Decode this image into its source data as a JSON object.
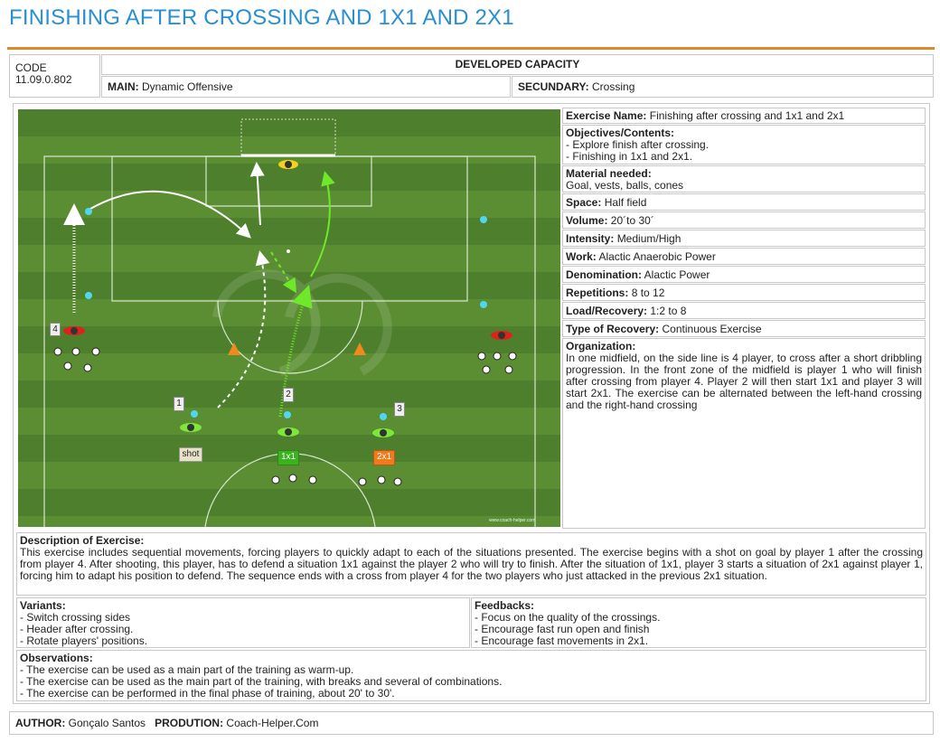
{
  "title": "FINISHING AFTER CROSSING AND 1X1 AND 2X1",
  "code": {
    "label": "CODE",
    "value": "11.09.0.802"
  },
  "developed_capacity": "DEVELOPED CAPACITY",
  "main": {
    "label": "MAIN:",
    "value": "Dynamic Offensive"
  },
  "secundary": {
    "label": "SECUNDARY:",
    "value": "Crossing"
  },
  "info": {
    "exercise_name": {
      "label": "Exercise Name:",
      "value": "Finishing after crossing and 1x1 and 2x1"
    },
    "objectives": {
      "label": "Objectives/Contents:",
      "lines": [
        "- Explore finish after crossing.",
        "- Finishing in 1x1 and 2x1."
      ]
    },
    "material": {
      "label": "Material needed:",
      "value": "Goal, vests, balls, cones"
    },
    "space": {
      "label": "Space:",
      "value": "Half field"
    },
    "volume": {
      "label": "Volume:",
      "value": "20´to 30´"
    },
    "intensity": {
      "label": "Intensity:",
      "value": "Medium/High"
    },
    "work": {
      "label": "Work:",
      "value": "Alactic Anaerobic Power"
    },
    "denomination": {
      "label": "Denomination:",
      "value": "Alactic Power"
    },
    "repetitions": {
      "label": "Repetitions:",
      "value": "8 to 12"
    },
    "load_recovery": {
      "label": "Load/Recovery:",
      "value": "1:2 to 8"
    },
    "recovery_type": {
      "label": "Type of Recovery:",
      "value": "Continuous Exercise"
    },
    "organization": {
      "label": "Organization:",
      "text": "In one midfield, on the side line is 4 player, to cross after a short dribbling progression. In the front zone of the midfield is player 1 who will finish after crossing from player 4. Player 2 will then start 1x1 and player 3 will start 2x1. The exercise can be alternated between the left-hand crossing and the right-hand crossing"
    }
  },
  "diagram": {
    "player_numbers": [
      "1",
      "2",
      "3",
      "4"
    ],
    "tags": {
      "shot": "shot",
      "one_v_one": "1x1",
      "two_v_one": "2x1"
    },
    "watermark": "www.coach-helper.com",
    "colors": {
      "grass_dark": "#4e7f2c",
      "grass_light": "#5b8e33",
      "tag_green": "#3cb21e",
      "tag_orange": "#f07a1c",
      "tag_beige": "#e8e2c8",
      "vest_green": "#7de83a",
      "vest_red": "#e0201c",
      "cone": "#f08a1c",
      "marker": "#4fd6f0"
    }
  },
  "description": {
    "label": "Description of Exercise:",
    "text": "This exercise includes sequential movements, forcing players to quickly adapt to each of the situations presented. The exercise begins with a shot on goal by player 1 after the crossing from player 4. After shooting, this player, has to defend a situation 1x1 against the player 2 who will try to finish. After the situation of 1x1, player 3 starts a situation of 2x1 against player 1, forcing him to adapt his position to defend. The sequence ends with a cross from player 4 for the two players who just attacked in the previous 2x1 situation."
  },
  "variants": {
    "label": "Variants:",
    "lines": [
      "- Switch crossing sides",
      "- Header after crossing.",
      "- Rotate players' positions."
    ]
  },
  "feedbacks": {
    "label": "Feedbacks:",
    "lines": [
      "- Focus on the quality of the crossings.",
      "- Encourage fast run open and finish",
      "- Encourage fast movements in 2x1."
    ]
  },
  "observations": {
    "label": "Observations:",
    "lines": [
      "- The exercise can be used as a main part of the training as warm-up.",
      "- The exercise can be used as the main part of the training, with breaks and several of combinations.",
      "- The exercise can be performed in the final phase of training, about 20' to 30'."
    ]
  },
  "footer": {
    "author_label": "AUTHOR:",
    "author": "Gonçalo Santos",
    "production_label": "PRODUTION:",
    "production": "Coach-Helper.Com"
  }
}
